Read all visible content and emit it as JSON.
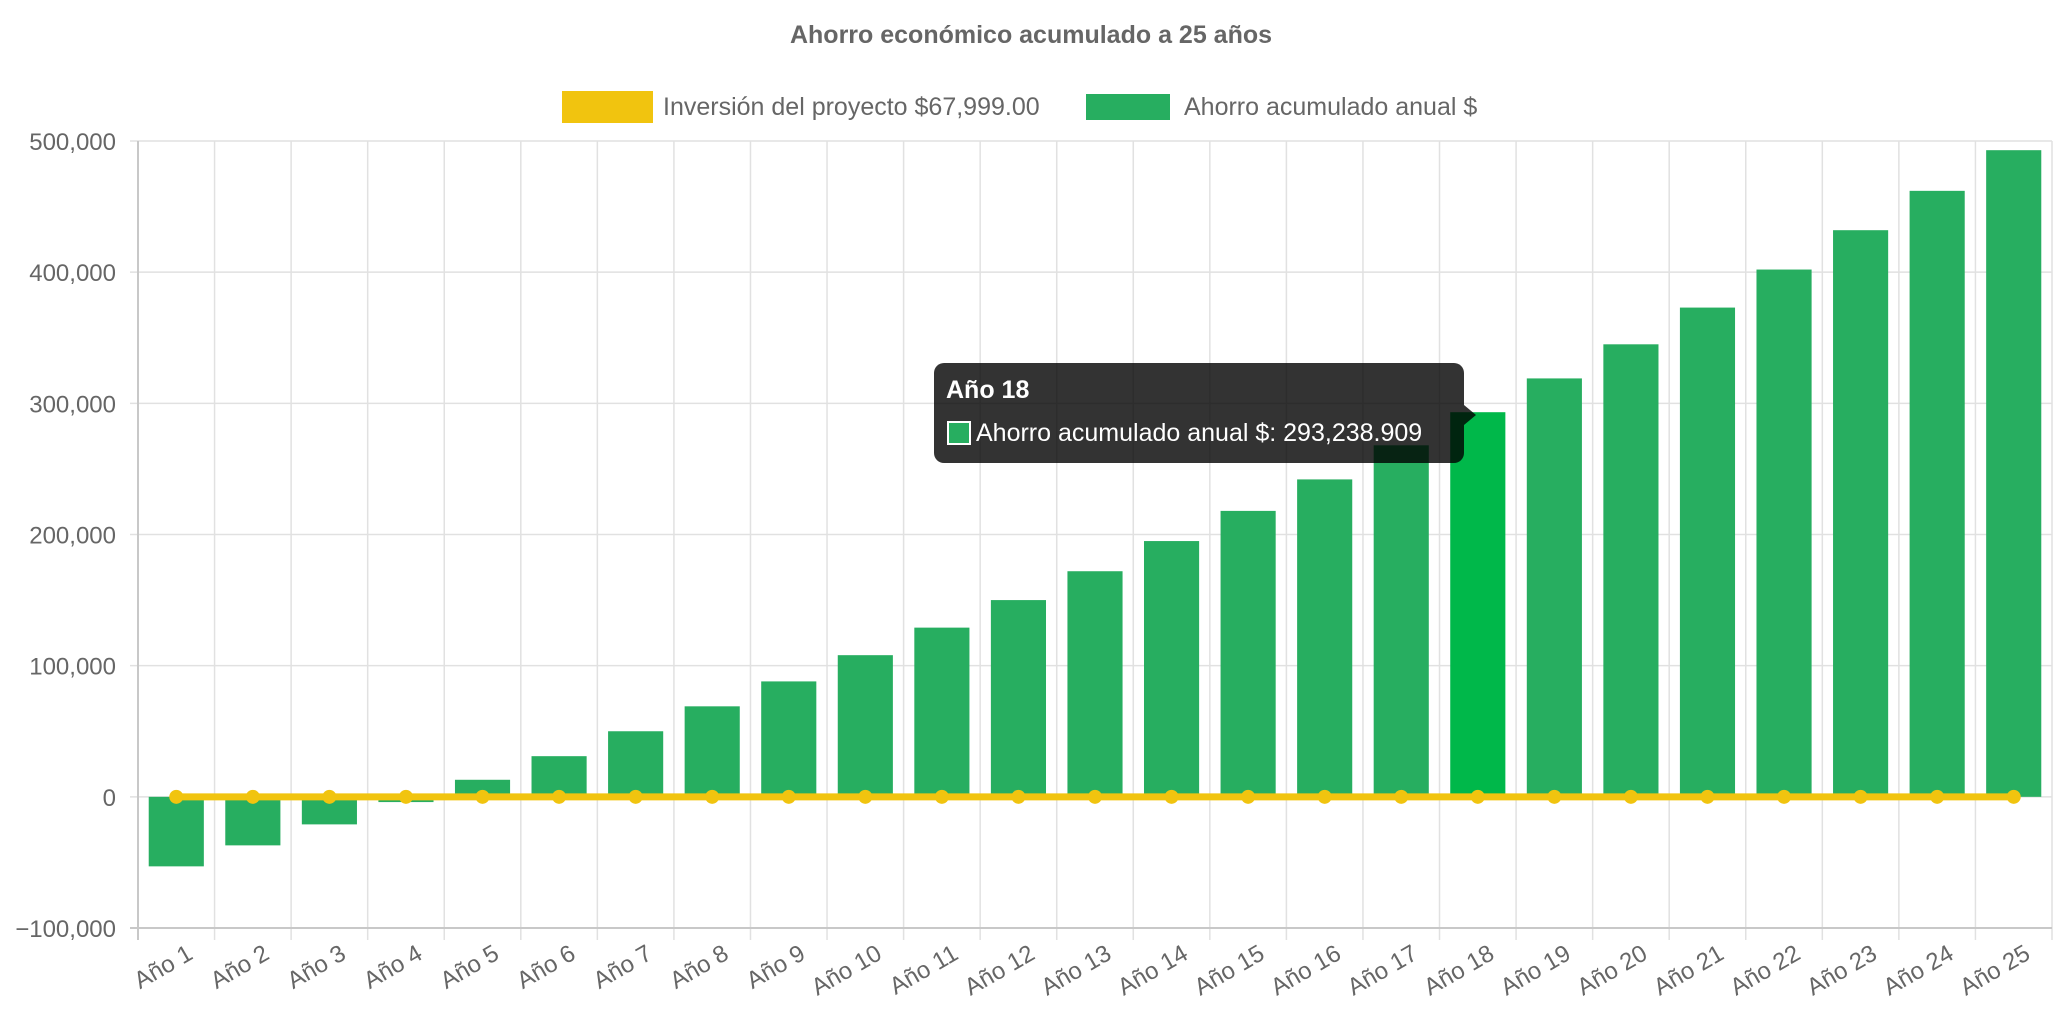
{
  "chart_data": {
    "type": "bar",
    "title": "Ahorro económico acumulado a 25 años",
    "xlabel": "",
    "ylabel": "",
    "categories": [
      "Año 1",
      "Año 2",
      "Año 3",
      "Año 4",
      "Año 5",
      "Año 6",
      "Año 7",
      "Año 8",
      "Año 9",
      "Año 10",
      "Año 11",
      "Año 12",
      "Año 13",
      "Año 14",
      "Año 15",
      "Año 16",
      "Año 17",
      "Año 18",
      "Año 19",
      "Año 20",
      "Año 21",
      "Año 22",
      "Año 23",
      "Año 24",
      "Año 25"
    ],
    "ylim": [
      -100000,
      500000
    ],
    "yticks": [
      500000,
      400000,
      300000,
      200000,
      100000,
      0,
      -100000
    ],
    "ytick_labels": [
      "500,000",
      "400,000",
      "300,000",
      "200,000",
      "100,000",
      "0",
      "−100,000"
    ],
    "grid": true,
    "legend_position": "top",
    "series": [
      {
        "name": "Inversión del proyecto $67,999.00",
        "type": "line",
        "color": "#f1c40f",
        "values": [
          0,
          0,
          0,
          0,
          0,
          0,
          0,
          0,
          0,
          0,
          0,
          0,
          0,
          0,
          0,
          0,
          0,
          0,
          0,
          0,
          0,
          0,
          0,
          0,
          0
        ]
      },
      {
        "name": "Ahorro acumulado anual $",
        "type": "bar",
        "color": "#27ae60",
        "highlight_color": "#00b84a",
        "values": [
          -53000,
          -37000,
          -21000,
          -4000,
          13000,
          31000,
          50000,
          69000,
          88000,
          108000,
          129000,
          150000,
          172000,
          195000,
          218000,
          242000,
          268000,
          293238.909,
          319000,
          345000,
          373000,
          402000,
          432000,
          462000,
          493000
        ]
      }
    ]
  },
  "tooltip": {
    "title": "Año 18",
    "series_label": "Ahorro acumulado anual $",
    "value_text": "293,238.909",
    "index": 17
  }
}
